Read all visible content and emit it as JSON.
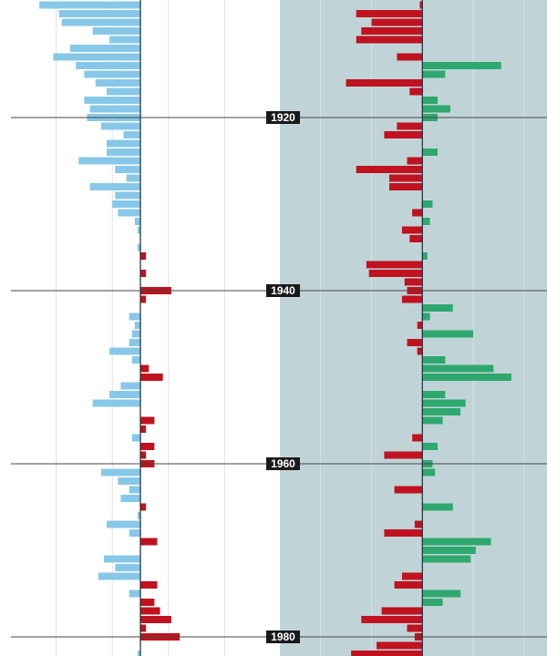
{
  "chart_data": [
    {
      "type": "bar",
      "orientation": "horizontal",
      "categories": [
        null,
        null,
        null,
        null,
        null,
        null,
        null,
        null,
        null,
        null,
        null,
        null,
        null,
        "1920",
        null,
        null,
        null,
        null,
        null,
        null,
        null,
        null,
        null,
        null,
        null,
        null,
        null,
        null,
        null,
        null,
        null,
        null,
        null,
        "1940",
        null,
        null,
        null,
        null,
        null,
        null,
        null,
        null,
        null,
        null,
        null,
        null,
        null,
        null,
        null,
        null,
        null,
        null,
        null,
        "1960",
        null,
        null,
        null,
        null,
        null,
        null,
        null,
        null,
        null,
        null,
        null,
        null,
        null,
        null,
        null,
        null,
        null,
        null,
        null,
        "1980",
        null,
        null
      ],
      "values": [
        -3.6,
        -2.9,
        -2.8,
        -1.7,
        -1.1,
        -2.5,
        -3.1,
        -2.3,
        -2.0,
        -1.6,
        -1.2,
        -2.0,
        -1.8,
        -1.9,
        -1.4,
        -0.6,
        -1.2,
        -1.2,
        -2.2,
        -0.9,
        -0.5,
        -1.8,
        -0.9,
        -1.0,
        -0.8,
        -0.2,
        -0.1,
        0,
        -0.1,
        0.2,
        0,
        0.2,
        0,
        1.1,
        0.2,
        0,
        -0.4,
        -0.2,
        -0.3,
        -0.4,
        -1.1,
        -0.3,
        0.3,
        0.8,
        -0.7,
        -1.1,
        -1.7,
        0,
        0.5,
        0.2,
        -0.3,
        0.5,
        0.2,
        0.5,
        -1.4,
        -0.8,
        -0.4,
        -0.7,
        0.2,
        -0.1,
        -1.2,
        -0.4,
        0.6,
        0,
        -1.3,
        -0.9,
        -1.5,
        0.6,
        -0.4,
        0.5,
        0.7,
        1.1,
        0.2,
        1.4,
        0,
        -0.1
      ],
      "negative_color": "#87c8e8",
      "positive_color": "#c0121f",
      "background": "#ffffff",
      "xlim": [
        -5,
        5
      ],
      "xticks": [
        -3,
        -1,
        1,
        3
      ],
      "grid": true
    },
    {
      "type": "bar",
      "orientation": "horizontal",
      "values": [
        -0.1,
        -2.6,
        -2.0,
        -2.4,
        -2.6,
        0,
        -1.0,
        3.1,
        0.9,
        -3.0,
        -0.5,
        0.6,
        1.1,
        0.6,
        -1.0,
        -1.5,
        0,
        0.6,
        -0.6,
        -2.6,
        -1.3,
        -1.3,
        0,
        0.4,
        -0.4,
        0.3,
        -0.8,
        -0.5,
        0,
        0.2,
        -2.2,
        -2.1,
        -0.7,
        -0.6,
        -0.8,
        1.2,
        0.3,
        -0.2,
        2.0,
        -0.6,
        -0.2,
        0.9,
        2.8,
        3.5,
        0,
        0.9,
        1.7,
        1.5,
        0.8,
        0,
        -0.4,
        0.6,
        -1.5,
        0.4,
        0.5,
        0,
        -1.1,
        0,
        1.2,
        0,
        -0.3,
        -1.5,
        2.7,
        2.1,
        1.9,
        0,
        -0.8,
        -1.1,
        1.5,
        0.8,
        -1.6,
        -2.4,
        -0.6,
        -0.3,
        -1.8,
        -2.8
      ],
      "negative_color": "#c0121f",
      "positive_color": "#2ea86e",
      "background": "#c0d4d8",
      "xlim": [
        -5.6,
        4.9
      ],
      "xticks": [
        -4,
        -2,
        2,
        4
      ],
      "grid": true
    }
  ]
}
